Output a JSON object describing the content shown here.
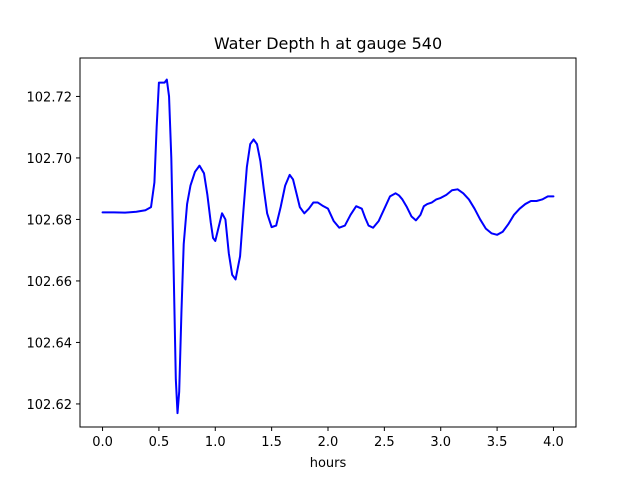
{
  "chart_data": {
    "type": "line",
    "title": "Water Depth h at gauge 540",
    "xlabel": "hours",
    "ylabel": "",
    "xlim": [
      -0.2,
      4.2
    ],
    "ylim": [
      102.6125,
      102.7325
    ],
    "xticks": [
      0.0,
      0.5,
      1.0,
      1.5,
      2.0,
      2.5,
      3.0,
      3.5,
      4.0
    ],
    "xtick_labels": [
      "0.0",
      "0.5",
      "1.0",
      "1.5",
      "2.0",
      "2.5",
      "3.0",
      "3.5",
      "4.0"
    ],
    "yticks": [
      102.62,
      102.64,
      102.66,
      102.68,
      102.7,
      102.72
    ],
    "ytick_labels": [
      "102.62",
      "102.64",
      "102.66",
      "102.68",
      "102.70",
      "102.72"
    ],
    "grid": false,
    "series": [
      {
        "color": "#0000ff",
        "x": [
          0.0,
          0.1,
          0.2,
          0.3,
          0.38,
          0.43,
          0.46,
          0.48,
          0.5,
          0.52,
          0.55,
          0.57,
          0.59,
          0.61,
          0.63,
          0.65,
          0.665,
          0.68,
          0.7,
          0.72,
          0.75,
          0.78,
          0.82,
          0.86,
          0.9,
          0.93,
          0.96,
          0.98,
          1.0,
          1.03,
          1.06,
          1.09,
          1.12,
          1.15,
          1.18,
          1.22,
          1.25,
          1.28,
          1.31,
          1.34,
          1.37,
          1.4,
          1.43,
          1.46,
          1.5,
          1.54,
          1.58,
          1.62,
          1.66,
          1.69,
          1.72,
          1.75,
          1.79,
          1.83,
          1.87,
          1.91,
          1.95,
          2.0,
          2.05,
          2.1,
          2.15,
          2.2,
          2.25,
          2.3,
          2.33,
          2.36,
          2.4,
          2.45,
          2.5,
          2.55,
          2.6,
          2.63,
          2.66,
          2.7,
          2.74,
          2.78,
          2.82,
          2.85,
          2.88,
          2.92,
          2.96,
          3.0,
          3.05,
          3.1,
          3.15,
          3.2,
          3.25,
          3.3,
          3.35,
          3.4,
          3.45,
          3.5,
          3.55,
          3.6,
          3.65,
          3.7,
          3.75,
          3.8,
          3.85,
          3.9,
          3.95,
          4.0
        ],
        "y": [
          102.6823,
          102.6823,
          102.6822,
          102.6825,
          102.683,
          102.684,
          102.692,
          102.71,
          102.7245,
          102.7245,
          102.7245,
          102.7255,
          102.72,
          102.7,
          102.665,
          102.628,
          102.617,
          102.624,
          102.65,
          102.672,
          102.685,
          102.691,
          102.6955,
          102.6975,
          102.695,
          102.688,
          102.679,
          102.674,
          102.673,
          102.6775,
          102.682,
          102.68,
          102.669,
          102.662,
          102.6605,
          102.668,
          102.683,
          102.697,
          102.7045,
          102.706,
          102.7045,
          102.699,
          102.69,
          102.682,
          102.6775,
          102.678,
          102.684,
          102.691,
          102.6945,
          102.693,
          102.6885,
          102.684,
          102.682,
          102.6835,
          102.6855,
          102.6855,
          102.6845,
          102.6835,
          102.6795,
          102.6773,
          102.678,
          102.6815,
          102.6843,
          102.6835,
          102.6805,
          102.678,
          102.6773,
          102.6795,
          102.6835,
          102.6875,
          102.6885,
          102.6878,
          102.6865,
          102.684,
          102.681,
          102.6797,
          102.6815,
          102.6843,
          102.685,
          102.6855,
          102.6865,
          102.687,
          102.688,
          102.6895,
          102.6898,
          102.6885,
          102.6865,
          102.6835,
          102.68,
          102.677,
          102.6755,
          102.675,
          102.676,
          102.6785,
          102.6815,
          102.6835,
          102.685,
          102.686,
          102.686,
          102.6865,
          102.6875,
          102.6875
        ]
      }
    ]
  }
}
